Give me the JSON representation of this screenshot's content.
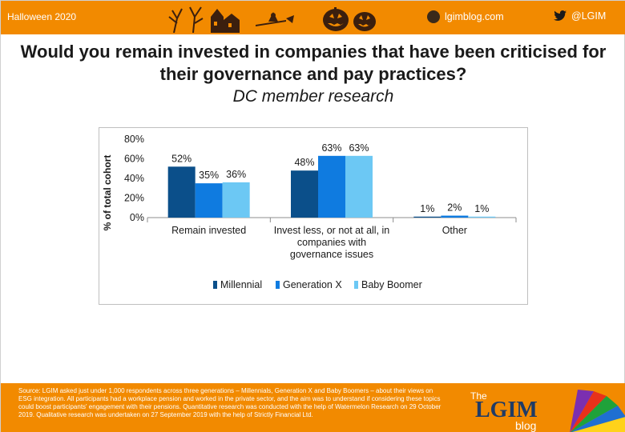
{
  "header": {
    "left_label": "Halloween 2020",
    "blog_label": "lgimblog.com",
    "twitter_label": "@LGIM"
  },
  "title": "Would you remain invested in companies that have been criticised for their governance and pay practices?",
  "subtitle": "DC member research",
  "chart_data": {
    "type": "bar",
    "ylabel": "% of total cohort",
    "ylim": [
      0,
      80
    ],
    "yticks": [
      "0%",
      "20%",
      "40%",
      "60%",
      "80%"
    ],
    "categories": [
      "Remain invested",
      "Invest less, or not at all, in companies with governance issues",
      "Other"
    ],
    "category_lines": [
      [
        "Remain invested"
      ],
      [
        "Invest less, or not at all, in",
        "companies with",
        "governance issues"
      ],
      [
        "Other"
      ]
    ],
    "series": [
      {
        "name": "Millennial",
        "values": [
          52,
          48,
          1
        ],
        "labels": [
          "52%",
          "48%",
          "1%"
        ],
        "color": "#0b4f8a"
      },
      {
        "name": "Generation X",
        "values": [
          35,
          63,
          2
        ],
        "labels": [
          "35%",
          "63%",
          "2%"
        ],
        "color": "#0f7be0"
      },
      {
        "name": "Baby Boomer",
        "values": [
          36,
          63,
          1
        ],
        "labels": [
          "36%",
          "63%",
          "1%"
        ],
        "color": "#6cc8f4"
      }
    ],
    "legend_position": "bottom",
    "grid": false
  },
  "footer": {
    "source_text": "Source: LGIM asked just under 1,000 respondents across three generations – Millennials, Generation X and Baby Boomers – about their views on ESG integration. All participants had a workplace pension and worked in the private sector, and the aim was to understand if considering these topics could boost participants' engagement with their pensions. Quantitative research was conducted with the help of Watermelon Research on 29 October 2019. Qualitative research was undertaken on 27 September 2019 with the help of Strictly Financial Ltd.",
    "logo_the": "The",
    "logo_main": "LGIM",
    "logo_blog": "blog"
  },
  "colors": {
    "brand_orange": "#f28a00",
    "logo_blue": "#1f3b66"
  }
}
